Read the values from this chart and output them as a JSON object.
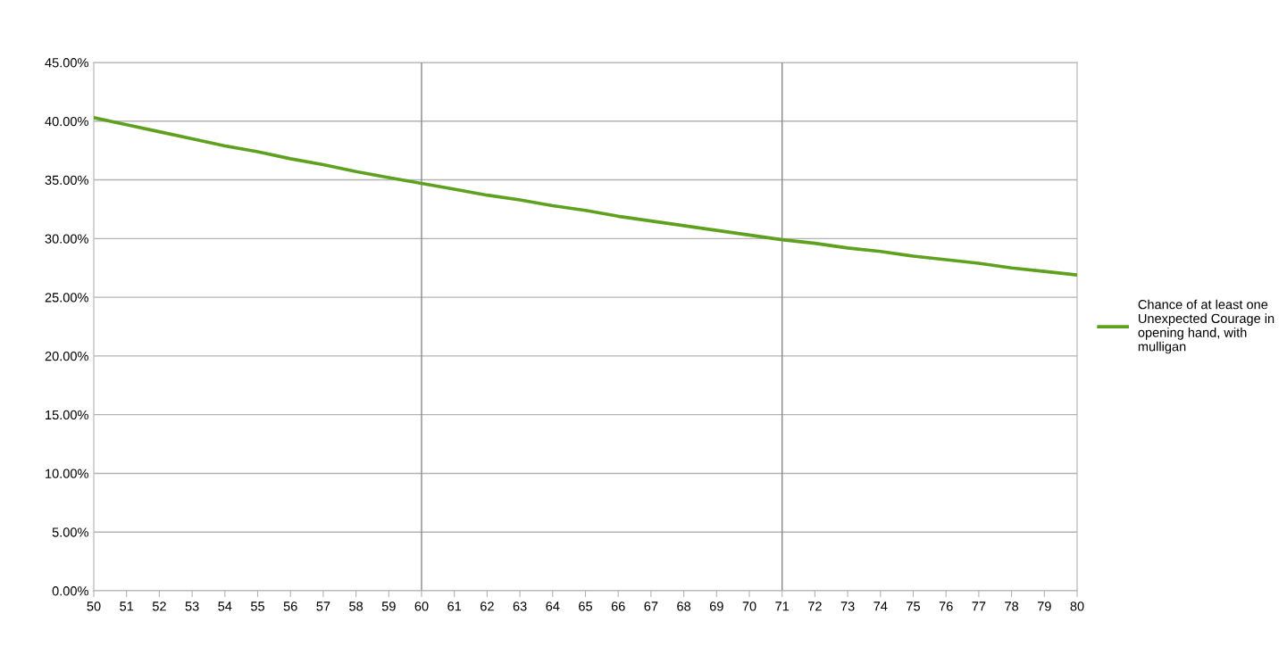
{
  "chart_data": {
    "type": "line",
    "x": [
      50,
      51,
      52,
      53,
      54,
      55,
      56,
      57,
      58,
      59,
      60,
      61,
      62,
      63,
      64,
      65,
      66,
      67,
      68,
      69,
      70,
      71,
      72,
      73,
      74,
      75,
      76,
      77,
      78,
      79,
      80
    ],
    "series": [
      {
        "name": "Chance of at least one Unexpected Courage in opening hand, with mulligan",
        "color": "#5ea11f",
        "values": [
          40.3,
          39.7,
          39.1,
          38.5,
          37.9,
          37.4,
          36.8,
          36.3,
          35.7,
          35.2,
          34.7,
          34.2,
          33.7,
          33.3,
          32.8,
          32.4,
          31.9,
          31.5,
          31.1,
          30.7,
          30.3,
          29.9,
          29.6,
          29.2,
          28.9,
          28.5,
          28.2,
          27.9,
          27.5,
          27.2,
          26.9
        ]
      }
    ],
    "xlim": [
      50,
      80
    ],
    "xticks": [
      50,
      51,
      52,
      53,
      54,
      55,
      56,
      57,
      58,
      59,
      60,
      61,
      62,
      63,
      64,
      65,
      66,
      67,
      68,
      69,
      70,
      71,
      72,
      73,
      74,
      75,
      76,
      77,
      78,
      79,
      80
    ],
    "ylim": [
      0,
      45
    ],
    "yticks": [
      {
        "value": 0,
        "label": "0.00%"
      },
      {
        "value": 5,
        "label": "5.00%"
      },
      {
        "value": 10,
        "label": "10.00%"
      },
      {
        "value": 15,
        "label": "15.00%"
      },
      {
        "value": 20,
        "label": "20.00%"
      },
      {
        "value": 25,
        "label": "25.00%"
      },
      {
        "value": 30,
        "label": "30.00%"
      },
      {
        "value": 35,
        "label": "35.00%"
      },
      {
        "value": 40,
        "label": "40.00%"
      },
      {
        "value": 45,
        "label": "45.00%"
      }
    ],
    "grid": "y",
    "legend": "right",
    "marker": "none",
    "line_style": "solid",
    "ref_lines": [
      {
        "axis": "x",
        "value": 60,
        "color": "#888888"
      },
      {
        "axis": "x",
        "value": 71,
        "color": "#888888"
      }
    ]
  }
}
